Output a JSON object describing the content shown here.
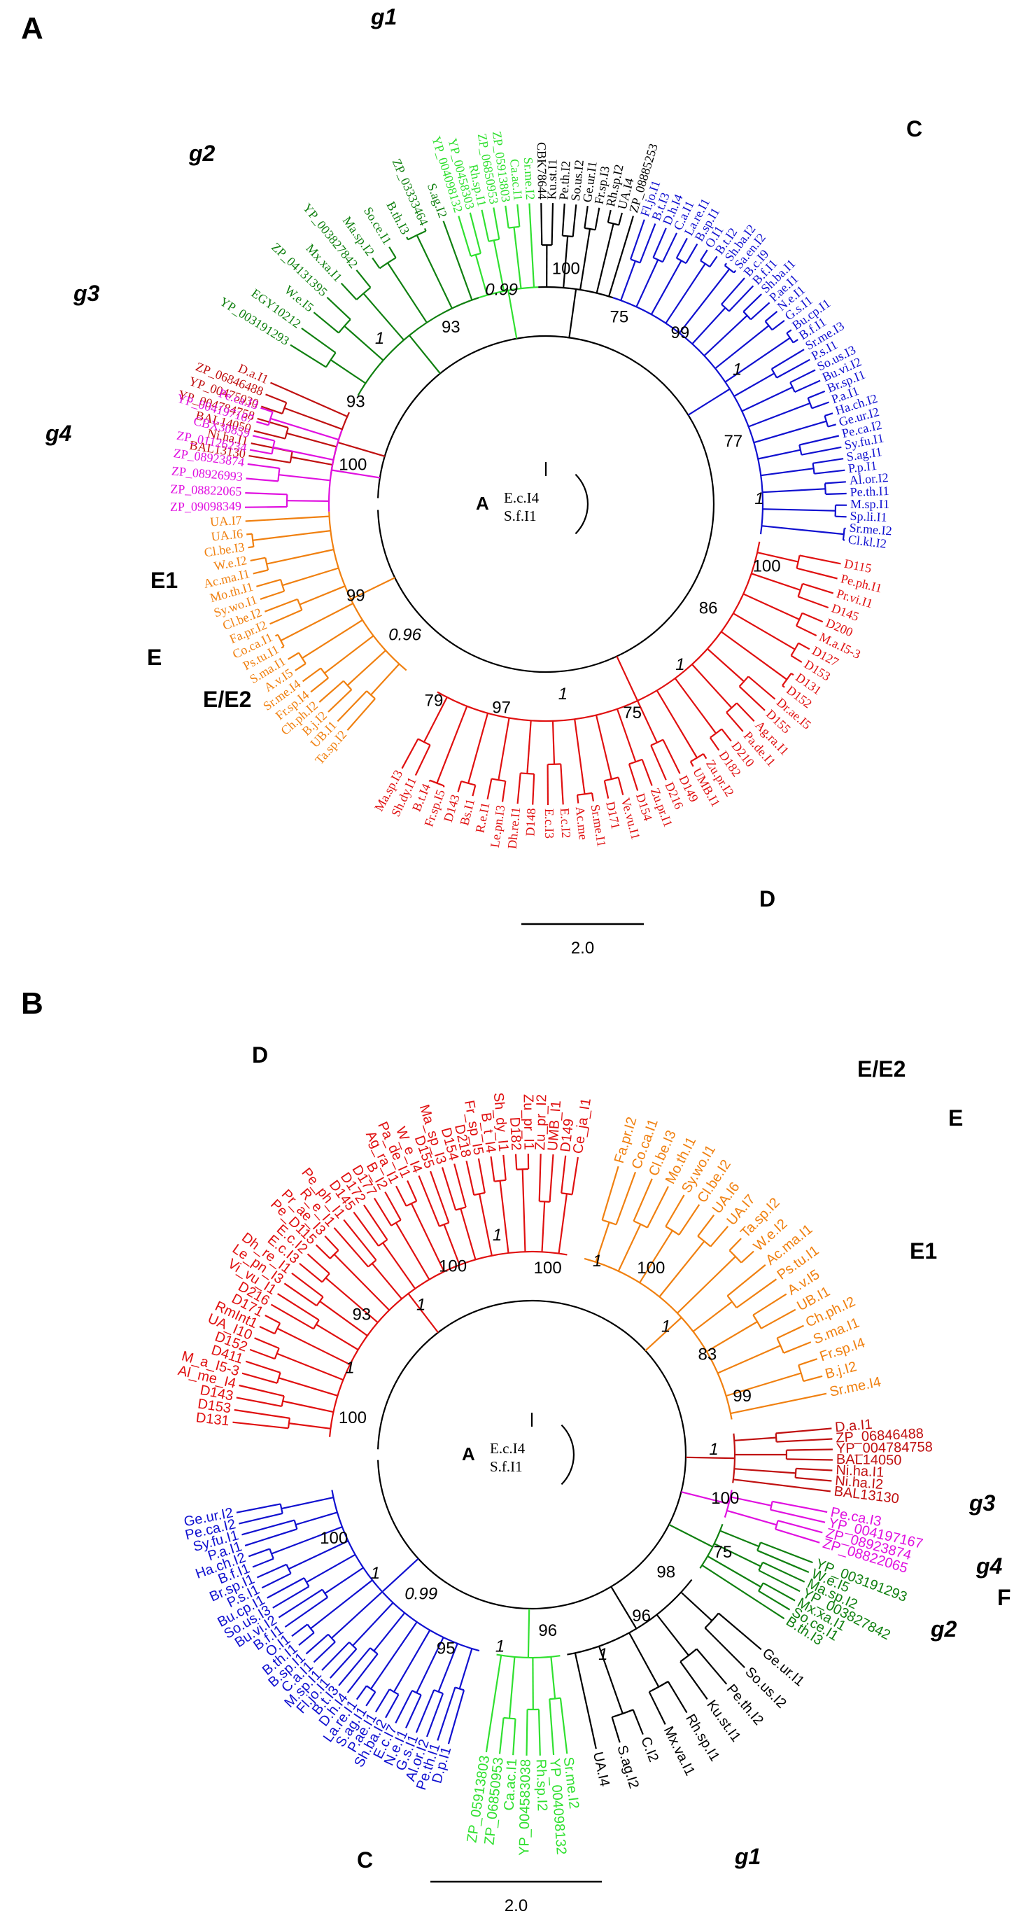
{
  "colors": {
    "clade_c": "#1010d0",
    "clade_d": "#e01010",
    "clade_e1": "#f08010",
    "g1": "#30e030",
    "g2": "#108010",
    "g3": "#c01010",
    "g4": "#e010e0",
    "other": "#000000"
  },
  "panels": [
    {
      "letter": "A",
      "root_label": "A",
      "root_taxa": [
        "E.c.I4",
        "S.f.I1"
      ],
      "scale_label": "2.0",
      "clade_labels": {
        "g1": "g1",
        "g2": "g2",
        "g3": "g3",
        "g4": "g4",
        "C": "C",
        "D": "D",
        "E": "E",
        "E1": "E1",
        "E2": "E/E2"
      },
      "support_values": [
        "100",
        "93",
        "1",
        "93",
        "0.99",
        "100",
        "75",
        "99",
        "1",
        "77",
        "1",
        "100",
        "86",
        "1",
        "75",
        "1",
        "97",
        "79",
        "0.96",
        "99"
      ],
      "groups": [
        {
          "key": "g1",
          "color_key": "g1",
          "taxa": [
            "YP_004098132",
            "YP_00458303",
            "Rh.sp.I1",
            "ZP_06850953",
            "ZP_05913803",
            "Ca.ac.I1",
            "Sr.me.I2"
          ]
        },
        {
          "key": "black_top",
          "color_key": "other",
          "taxa": [
            "CBK78644",
            "Ku.st.I1",
            "Pe.th.I2",
            "So.us.I2",
            "Ge.ur.I1",
            "Fr.sp.I3",
            "Rh.sp.I2",
            "UA.I4",
            "ZP_08885253"
          ]
        },
        {
          "key": "C",
          "color_key": "clade_c",
          "taxa": [
            "Fl.jo.I1",
            "B.t.I3",
            "D.h.I4",
            "C.a.I1",
            "La.re.I1",
            "B.sp.I1",
            "O.I1",
            "B.t.I2",
            "Sh.ba.I2",
            "Sa.en.I2",
            "B.c.I9",
            "B.f.I1",
            "Sh.ba.I1",
            "P.ae.I1",
            "N.e.I1",
            "G.s.I1",
            "Bu.cp.I1",
            "B.f.I1",
            "Sr.me.I3",
            "P.s.I1",
            "So.us.I3",
            "Bu.vi.I2",
            "Br.sp.I1",
            "P.a.I1",
            "Ha.ch.I2",
            "Ge.ur.I2",
            "Pe.ca.I2",
            "Sy.fu.I1",
            "S.ag.I1",
            "P.p.I1",
            "Al.or.I2",
            "Pe.th.I1",
            "M.sp.I1",
            "Sp.li.I1",
            "Sr.me.I2",
            "Cl.kl.I2"
          ]
        },
        {
          "key": "D",
          "color_key": "clade_d",
          "taxa": [
            "D115",
            "Pe.ph.I1",
            "Pr.vi.I1",
            "D145",
            "D200",
            "M.a.I5-3",
            "D127",
            "D153",
            "D131",
            "D152",
            "Dr.ae.I5",
            "D155",
            "Ag.ra.I1",
            "Pa.de.I1",
            "D210",
            "D182",
            "Zu.pr.I2",
            "UMB.I1",
            "D149",
            "D216",
            "Zu.pr.I1",
            "D154",
            "Ve.vu.I1",
            "D171",
            "Sr.me.I1",
            "Ac.me",
            "E.c.I2",
            "E.c.I3",
            "D148",
            "Dh.re.I1",
            "Le.pn.I3",
            "R.e.I1",
            "Bs.I1",
            "D143",
            "Fr.sp.I5",
            "B.t.I4",
            "Sh.dy.I1",
            "Ma.sp.I3"
          ]
        },
        {
          "key": "E1",
          "color_key": "clade_e1",
          "taxa": [
            "Ta.sp.I2",
            "UB.I1",
            "B.j.I2",
            "Ch.ph.I2",
            "Fr.sp.I4",
            "Sr.me.I4",
            "A.v.I5",
            "S.ma.I1",
            "Ps.tu.I1",
            "Co.ca.I1",
            "Fa.pr.I2",
            "Cl.be.I2",
            "Sy.wo.I1",
            "Mo.th.I1",
            "Ac.ma.I1",
            "W.e.I2",
            "Cl.be.I3",
            "UA.I6",
            "UA.I7"
          ]
        },
        {
          "key": "g3",
          "color_key": "g3",
          "taxa": [
            "BAL13130",
            "Ni.ha.I1",
            "BAL14050",
            "YP_004784758",
            "YP_00475030",
            "ZP_06846488",
            "D.a.I1"
          ]
        },
        {
          "key": "g4",
          "color_key": "g4",
          "taxa": [
            "ZP_09098349",
            "ZP_08822065",
            "ZP_08926993",
            "ZP_08923874",
            "ZP_01126234",
            "CBX30859",
            "YP_004197167",
            "Pe.ca.I3"
          ]
        },
        {
          "key": "g2",
          "color_key": "g2",
          "taxa": [
            "YP_003191293",
            "EGY10212",
            "W.e.I5",
            "ZP_04131395",
            "Mx.xa.I1",
            "YP_003827842",
            "Ma.sp.I2",
            "So.ce.I1",
            "B.th.I3",
            "ZP_03333464",
            "S.ag.I2"
          ]
        }
      ]
    },
    {
      "letter": "B",
      "root_label": "A",
      "root_taxa": [
        "E.c.I4",
        "S.f.I1"
      ],
      "scale_label": "2.0",
      "clade_labels": {
        "g1": "g1",
        "g2": "g2",
        "g3": "g3",
        "g4": "g4",
        "C": "C",
        "D": "D",
        "E": "E",
        "E1": "E1",
        "E2": "E/E2",
        "F": "F"
      },
      "support_values": [
        "100",
        "1",
        "93",
        "1",
        "100",
        "1",
        "100",
        "1",
        "100",
        "1",
        "83",
        "99",
        "1",
        "100",
        "75",
        "98",
        "96",
        "1",
        "96",
        "1",
        "95",
        "0.99",
        "1",
        "100"
      ],
      "groups": [
        {
          "key": "D",
          "color_key": "clade_d",
          "taxa": [
            "D131",
            "D153",
            "D143",
            "Al_me_I4",
            "M_a_I5-3",
            "D411",
            "D152",
            "UA_I10",
            "RmInt1",
            "D171",
            "D216",
            "Vi_vu_I1",
            "Le_pn_I3",
            "Dh_re_I1",
            "E.c.I3",
            "E.c.I2",
            "Pe_D115",
            "Pr_ae_I3",
            "R_e_I1",
            "Pe_ph_I1",
            "D145",
            "D172",
            "D177",
            "B_I2",
            "Ag_ra_I1",
            "Pa_de_I1",
            "W_e_I4",
            "D155",
            "Ma_sp_I3",
            "D154",
            "D218",
            "Fr_sp_I5",
            "B_t_I4",
            "Sh_dy_I1",
            "D182",
            "Zu_pr_I1",
            "Zu_pr_I2",
            "UMB_I1",
            "D149",
            "Ce_ja_I1"
          ]
        },
        {
          "key": "E1",
          "color_key": "clade_e1",
          "taxa": [
            "Fa.pr.I2",
            "Co.ca.I1",
            "Cl.be.I3",
            "Mo.th.I1",
            "Sy.wo.I1",
            "Cl.be.I2",
            "UA.I6",
            "UA.I7",
            "Ta.sp.I2",
            "W.e.I2",
            "Ac.ma.I1",
            "Ps.tu.I1",
            "A.v.I5",
            "UB.I1",
            "Ch.ph.I2",
            "S.ma.I1",
            "Fr.sp.I4",
            "B.j.I2",
            "Sr.me.I4"
          ]
        },
        {
          "key": "g3",
          "color_key": "g3",
          "taxa": [
            "D.a.I1",
            "ZP_06846488",
            "YP_004784758",
            "BAL14050",
            "Ni.ha.I1",
            "Ni.ha.I2",
            "BAL13130"
          ]
        },
        {
          "key": "g4",
          "color_key": "g4",
          "taxa": [
            "Pe.ca.I3",
            "YP_004197167",
            "ZP_08923874",
            "ZP_08822065"
          ]
        },
        {
          "key": "g2",
          "color_key": "g2",
          "taxa": [
            "YP_003191293",
            "W.e.I5",
            "Ma.sp.I2",
            "YP_003827842",
            "Mx.xa.I1",
            "So.ce.I1",
            "B.th.I3"
          ]
        },
        {
          "key": "black_bottom",
          "color_key": "other",
          "taxa": [
            "Ge.ur.I1",
            "So.us.I2",
            "Pe.th.I2",
            "Ku.st.I1",
            "Rh.sp.I1",
            "Mx.va.I1",
            "C.I2",
            "S.ag.I2",
            "UA.I4"
          ]
        },
        {
          "key": "g1",
          "color_key": "g1",
          "taxa": [
            "Sr.me.I2",
            "YP_004098132",
            "Rh.sp.I2",
            "YP_004583038",
            "Ca.ac.I1",
            "ZP_06850953",
            "ZP_05913803"
          ]
        },
        {
          "key": "C",
          "color_key": "clade_c",
          "taxa": [
            "D.p.I1",
            "Pe.th.I1",
            "Al.or.I2",
            "G.s.I1",
            "N.e.I1",
            "E.c.I7",
            "Sh.ba.I2",
            "P.ae.I1",
            "S.ag.I1",
            "La.re.I1",
            "D.h.I4",
            "B.t.I3",
            "Fl.jo.I1",
            "M.sp.I1",
            "C.a.I1",
            "B.sp.I1",
            "B.th.I1",
            "O.I1",
            "B.f.I1",
            "Bu.vi.I2",
            "So.us.I3",
            "Bu.cp.I1",
            "P.s.I1",
            "Br.sp.I1",
            "B.f.I1",
            "Ha.ch.I2",
            "P.a.I1",
            "Sy.fu.I1",
            "Pe.ca.I2",
            "Ge.ur.I2"
          ]
        }
      ]
    }
  ]
}
